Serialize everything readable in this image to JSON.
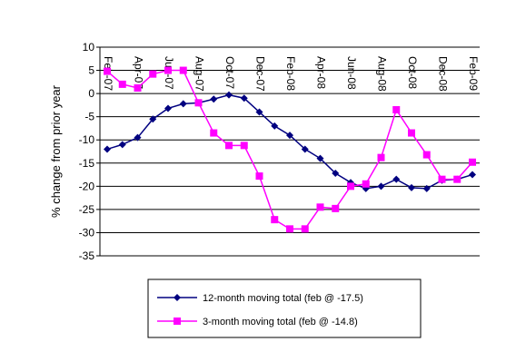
{
  "chart_data": {
    "type": "line",
    "xlabel": "",
    "ylabel": "% change from prior year",
    "ylim": [
      -35,
      10
    ],
    "yticks": [
      10,
      5,
      0,
      -5,
      -10,
      -15,
      -20,
      -25,
      -30,
      -35
    ],
    "grid": "horizontal",
    "legend_position": "bottom",
    "x": [
      "Feb-07",
      "Mar-07",
      "Apr-07",
      "May-07",
      "Jun-07",
      "Jul-07",
      "Aug-07",
      "Sep-07",
      "Oct-07",
      "Nov-07",
      "Dec-07",
      "Jan-08",
      "Feb-08",
      "Mar-08",
      "Apr-08",
      "May-08",
      "Jun-08",
      "Jul-08",
      "Aug-08",
      "Sep-08",
      "Oct-08",
      "Nov-08",
      "Dec-08",
      "Jan-09",
      "Feb-09"
    ],
    "x_tick_labels": [
      "Feb-07",
      "Apr-07",
      "Jun-07",
      "Aug-07",
      "Oct-07",
      "Dec-07",
      "Feb-08",
      "Apr-08",
      "Jun-08",
      "Aug-08",
      "Oct-08",
      "Dec-08",
      "Feb-09"
    ],
    "series": [
      {
        "name": "12-month moving total (feb @ -17.5)",
        "color": "#000080",
        "marker": "diamond",
        "values": [
          -12.0,
          -11.0,
          -9.5,
          -5.5,
          -3.2,
          -2.2,
          -2.0,
          -1.2,
          -0.3,
          -1.0,
          -4.0,
          -7.0,
          -9.0,
          -12.0,
          -14.0,
          -17.2,
          -19.2,
          -20.5,
          -20.0,
          -18.5,
          -20.3,
          -20.5,
          -18.7,
          -18.5,
          -17.5
        ]
      },
      {
        "name": "3-month moving total (feb  @ -14.8)",
        "color": "#ff00ff",
        "marker": "square",
        "values": [
          4.8,
          2.0,
          1.2,
          4.2,
          5.0,
          5.0,
          -2.0,
          -8.5,
          -11.2,
          -11.2,
          -17.8,
          -27.2,
          -29.2,
          -29.2,
          -24.5,
          -24.8,
          -20.0,
          -19.5,
          -13.8,
          -3.5,
          -8.5,
          -13.2,
          -18.5,
          -18.5,
          -14.8
        ]
      }
    ]
  }
}
